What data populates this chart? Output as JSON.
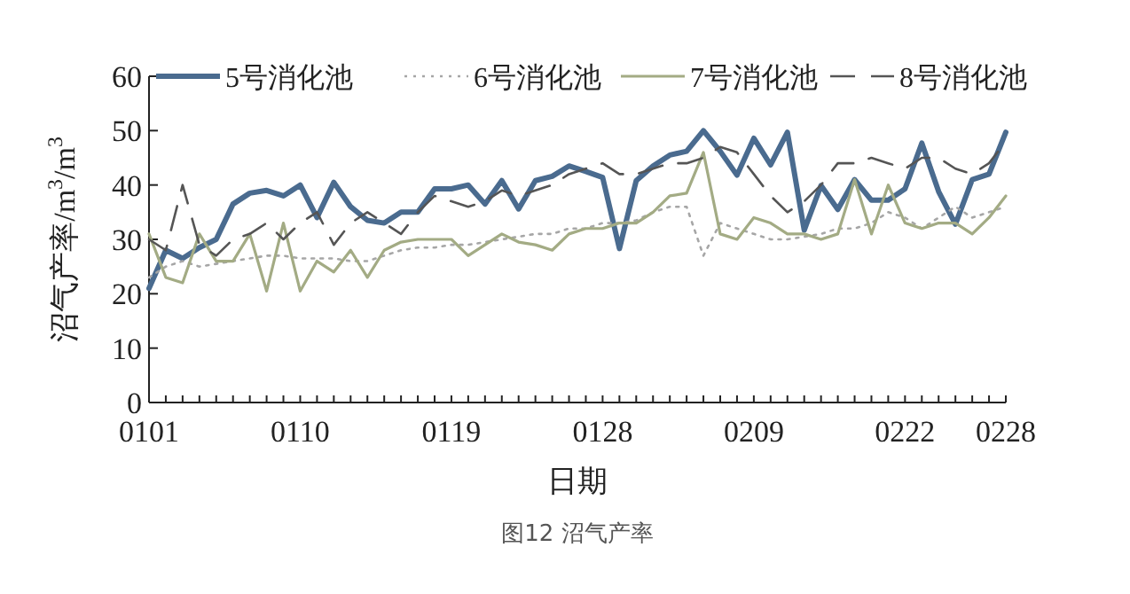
{
  "chart_data": {
    "type": "line",
    "categories": [
      "0101",
      null,
      null,
      null,
      null,
      null,
      null,
      null,
      null,
      "0110",
      null,
      null,
      null,
      null,
      null,
      null,
      null,
      null,
      "0119",
      null,
      null,
      null,
      null,
      null,
      null,
      null,
      null,
      "0128",
      null,
      null,
      null,
      null,
      null,
      null,
      null,
      null,
      "0209",
      null,
      null,
      null,
      null,
      null,
      null,
      null,
      null,
      "0222",
      null,
      null,
      null,
      null,
      null,
      "0228"
    ],
    "series": [
      {
        "name": "5号消化池",
        "color": "#4a6b8f",
        "line_style": "solid",
        "values": [
          21,
          28,
          26.5,
          28.5,
          30,
          36.5,
          38.5,
          39,
          38,
          40,
          34,
          40.5,
          36,
          33.5,
          33,
          35,
          35,
          39.3,
          39.3,
          40,
          36.5,
          40.8,
          35.6,
          40.8,
          41.6,
          43.5,
          42.5,
          41.4,
          28.3,
          40.8,
          43.5,
          45.5,
          46.2,
          50,
          46.2,
          41.8,
          48.6,
          43.7,
          49.7,
          31.7,
          39.9,
          35.5,
          41,
          37.2,
          37.2,
          39.3,
          47.7,
          38.8,
          32.8,
          41,
          42,
          49.7
        ]
      },
      {
        "name": "6号消化池",
        "color": "#a6a6a6",
        "line_style": "dotted",
        "values": [
          23,
          25,
          26,
          25,
          25.5,
          26,
          26.5,
          27,
          27,
          26.5,
          26.5,
          26.5,
          26,
          26,
          27,
          28,
          28.5,
          28.5,
          29,
          29,
          29.5,
          30,
          30.5,
          31,
          31,
          32,
          32,
          33,
          33,
          33.5,
          35,
          36,
          36,
          27,
          33,
          32,
          31,
          30,
          30,
          30.5,
          31,
          32,
          32,
          33,
          35,
          34,
          32,
          34,
          36,
          34,
          35,
          36
        ]
      },
      {
        "name": "7号消化池",
        "color": "#a3ab84",
        "line_style": "solid",
        "values": [
          31,
          23,
          22,
          31,
          26,
          26,
          31,
          20.5,
          33,
          20.5,
          26,
          24,
          28,
          23,
          28,
          29.5,
          30,
          30,
          30,
          27,
          29,
          31,
          29.5,
          29,
          28,
          31,
          32,
          32,
          33,
          33,
          35,
          38,
          38.5,
          46,
          31,
          30,
          34,
          33,
          31,
          31,
          30,
          31,
          41,
          31,
          40,
          33,
          32,
          33,
          33,
          31,
          34,
          38
        ]
      },
      {
        "name": "8号消化池",
        "color": "#555555",
        "line_style": "dashed",
        "values": [
          30,
          28,
          40,
          29,
          27,
          30,
          31,
          33,
          30,
          33,
          35,
          29,
          33,
          35,
          33,
          31,
          35,
          38,
          37,
          36,
          37,
          39,
          38,
          39,
          40,
          42,
          43,
          44,
          42,
          42,
          43,
          44,
          44,
          45,
          47,
          46,
          42,
          38,
          35,
          37,
          40,
          44,
          44,
          45,
          44,
          43,
          45,
          45,
          43,
          42,
          44,
          48
        ]
      }
    ],
    "ylim": [
      0,
      60
    ],
    "yticks": [
      0,
      10,
      20,
      30,
      40,
      50,
      60
    ],
    "xlabel": "日期",
    "ylabel": "沼气产率/m$^{3}$/m$^{3}$",
    "legend": "top",
    "annotations": [
      "图12 沼气产率"
    ]
  }
}
